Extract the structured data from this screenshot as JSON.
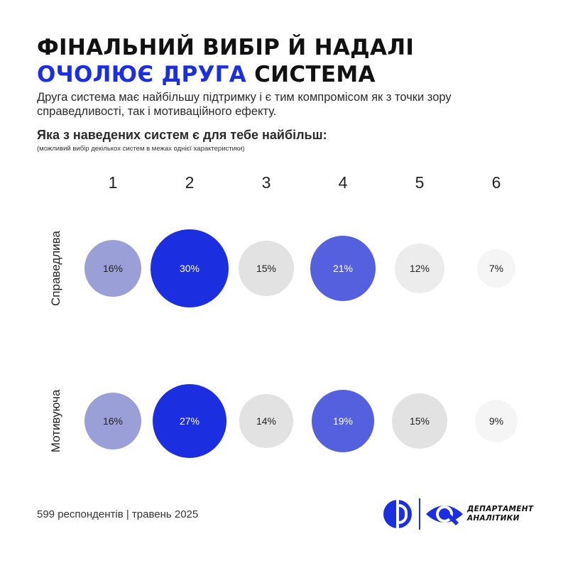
{
  "header": {
    "title_line1": "ФІНАЛЬНИЙ ВИБІР Й НАДАЛІ",
    "title_accent": "ОЧОЛЮЄ ДРУГА",
    "title_rest": " СИСТЕМА",
    "subtitle": "Друга система має найбільшу підтримку і є тим компромісом як з точки зору справедливості, так і мотиваційного ефекту.",
    "question": "Яка з наведених систем є для тебе найбільш:",
    "note": "(можливий вибір декількох систем в межах однієї характеристики)"
  },
  "chart_data": {
    "type": "bubble",
    "categories": [
      "1",
      "2",
      "3",
      "4",
      "5",
      "6"
    ],
    "series": [
      {
        "name": "Справедлива",
        "values": [
          16,
          30,
          15,
          21,
          12,
          7
        ],
        "labels": [
          "16%",
          "30%",
          "15%",
          "21%",
          "12%",
          "7%"
        ]
      },
      {
        "name": "Мотивуюча",
        "values": [
          16,
          27,
          14,
          19,
          15,
          9
        ],
        "labels": [
          "16%",
          "27%",
          "14%",
          "19%",
          "15%",
          "9%"
        ]
      }
    ],
    "unit": "%",
    "max_value": 30,
    "colors": {
      "highlight": "#1b2fe0",
      "medium": "#5560de",
      "light": "#9a9fd8",
      "gray_dark": "#e2e2e2",
      "gray_mid": "#ececec",
      "gray_light": "#f5f5f5"
    }
  },
  "footer": {
    "respondents": "599 респондентів | травень 2025",
    "brand_line1": "ДЕПАРТАМЕНТ",
    "brand_line2": "АНАЛІТИКИ"
  }
}
